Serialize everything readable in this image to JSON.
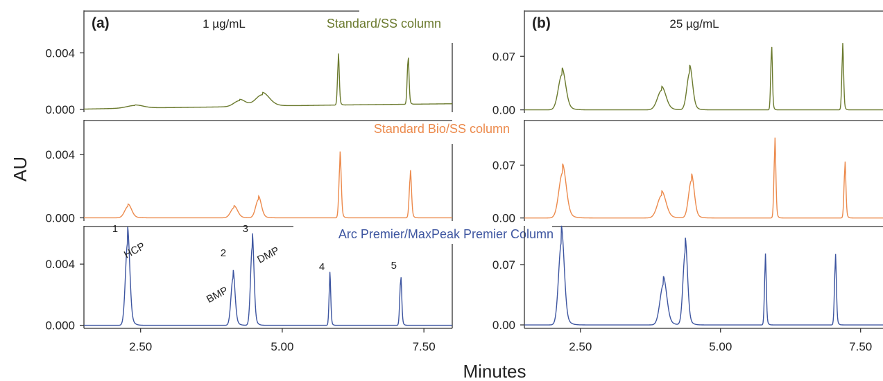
{
  "figure": {
    "ylabel": "AU",
    "xlabel": "Minutes",
    "colors": {
      "green": "#6b7a2e",
      "orange": "#ec8a4c",
      "blue": "#3d55a0",
      "axis": "#333333",
      "text": "#222222"
    }
  },
  "chart_data": [
    {
      "type": "line",
      "panel": "(a)",
      "concentration": "1 µg/mL",
      "x_ticks": [
        "2.50",
        "5.00",
        "7.50"
      ],
      "xlim": [
        1.5,
        8.0
      ],
      "rows": [
        {
          "name": "Standard/SS column",
          "color": "#6b7a2e",
          "ylim": [
            -0.0002,
            0.007
          ],
          "yticks": [
            0.0,
            0.004
          ],
          "ytick_labels": [
            "0.000",
            "0.004"
          ],
          "baseline": [
            [
              1.5,
              2e-05
            ],
            [
              2.2,
              8e-05
            ],
            [
              4.0,
              0.00018
            ],
            [
              5.8,
              0.0003
            ],
            [
              8.0,
              0.0004
            ]
          ],
          "peaks": [
            {
              "t": 2.4,
              "h": 0.00022,
              "w": 0.14
            },
            {
              "t": 4.25,
              "h": 0.0005,
              "w": 0.1
            },
            {
              "t": 4.65,
              "h": 0.00095,
              "w": 0.12
            },
            {
              "t": 5.99,
              "h": 0.0036,
              "w": 0.016
            },
            {
              "t": 7.22,
              "h": 0.0036,
              "w": 0.016
            }
          ]
        },
        {
          "name": "Standard Bio/SS column",
          "color": "#ec8a4c",
          "ylim": [
            -0.0002,
            0.0062
          ],
          "yticks": [
            0.0,
            0.004
          ],
          "ytick_labels": [
            "0.000",
            "0.004"
          ],
          "baseline": [
            [
              1.5,
              0.0
            ],
            [
              8.0,
              0.0
            ]
          ],
          "peaks": [
            {
              "t": 2.28,
              "h": 0.00085,
              "w": 0.06
            },
            {
              "t": 4.15,
              "h": 0.00075,
              "w": 0.06
            },
            {
              "t": 4.58,
              "h": 0.00135,
              "w": 0.05
            },
            {
              "t": 6.02,
              "h": 0.0041,
              "w": 0.02
            },
            {
              "t": 7.26,
              "h": 0.003,
              "w": 0.02
            }
          ]
        },
        {
          "name": "Arc Premier/MaxPeak Premier Column",
          "color": "#3d55a0",
          "ylim": [
            -0.0002,
            0.0065
          ],
          "yticks": [
            0.0,
            0.004
          ],
          "ytick_labels": [
            "0.000",
            "0.004"
          ],
          "baseline": [
            [
              1.5,
              0.0
            ],
            [
              8.0,
              0.0
            ]
          ],
          "peaks": [
            {
              "t": 2.27,
              "h": 0.0063,
              "w": 0.038
            },
            {
              "t": 4.13,
              "h": 0.0036,
              "w": 0.035
            },
            {
              "t": 4.47,
              "h": 0.006,
              "w": 0.03
            },
            {
              "t": 5.84,
              "h": 0.0034,
              "w": 0.015
            },
            {
              "t": 7.09,
              "h": 0.0034,
              "w": 0.017
            }
          ],
          "annotations": [
            {
              "text": "1",
              "t": 2.05,
              "v": 0.0061
            },
            {
              "text": "HCP",
              "t": 2.42,
              "v": 0.0047
            },
            {
              "text": "2",
              "t": 3.96,
              "v": 0.0045
            },
            {
              "text": "BMP",
              "t": 3.88,
              "v": 0.0018
            },
            {
              "text": "3",
              "t": 4.35,
              "v": 0.0061
            },
            {
              "text": "DMP",
              "t": 4.78,
              "v": 0.0044
            },
            {
              "text": "4",
              "t": 5.7,
              "v": 0.0036
            },
            {
              "text": "5",
              "t": 6.97,
              "v": 0.0037
            }
          ]
        }
      ]
    },
    {
      "type": "line",
      "panel": "(b)",
      "concentration": "25 µg/mL",
      "x_ticks": [
        "2.50",
        "5.00",
        "7.50"
      ],
      "xlim": [
        1.5,
        7.9
      ],
      "rows": [
        {
          "name": "Standard/SS column",
          "color": "#6b7a2e",
          "ylim": [
            -0.004,
            0.13
          ],
          "yticks": [
            0.0,
            0.07
          ],
          "ytick_labels": [
            "0.00",
            "0.07"
          ],
          "baseline": [
            [
              1.5,
              0.0
            ],
            [
              7.9,
              0.0
            ]
          ],
          "peaks": [
            {
              "t": 2.17,
              "h": 0.054,
              "w": 0.065
            },
            {
              "t": 3.95,
              "h": 0.03,
              "w": 0.075
            },
            {
              "t": 4.45,
              "h": 0.057,
              "w": 0.05
            },
            {
              "t": 5.91,
              "h": 0.088,
              "w": 0.015
            },
            {
              "t": 7.18,
              "h": 0.086,
              "w": 0.016
            }
          ]
        },
        {
          "name": "Standard Bio/SS column",
          "color": "#ec8a4c",
          "ylim": [
            -0.004,
            0.13
          ],
          "yticks": [
            0.0,
            0.07
          ],
          "ytick_labels": [
            "0.00",
            "0.07"
          ],
          "baseline": [
            [
              1.5,
              0.0
            ],
            [
              7.9,
              0.0
            ]
          ],
          "peaks": [
            {
              "t": 2.18,
              "h": 0.07,
              "w": 0.065
            },
            {
              "t": 3.95,
              "h": 0.035,
              "w": 0.075
            },
            {
              "t": 4.48,
              "h": 0.058,
              "w": 0.05
            },
            {
              "t": 5.97,
              "h": 0.106,
              "w": 0.017
            },
            {
              "t": 7.22,
              "h": 0.076,
              "w": 0.017
            }
          ]
        },
        {
          "name": "Arc Premier/MaxPeak Premier Column",
          "color": "#3d55a0",
          "ylim": [
            -0.004,
            0.115
          ],
          "yticks": [
            0.0,
            0.07
          ],
          "ytick_labels": [
            "0.00",
            "0.07"
          ],
          "baseline": [
            [
              1.5,
              0.0
            ],
            [
              7.9,
              0.0
            ]
          ],
          "peaks": [
            {
              "t": 2.16,
              "h": 0.112,
              "w": 0.05
            },
            {
              "t": 3.98,
              "h": 0.055,
              "w": 0.06
            },
            {
              "t": 4.37,
              "h": 0.099,
              "w": 0.04
            },
            {
              "t": 5.8,
              "h": 0.082,
              "w": 0.016
            },
            {
              "t": 7.05,
              "h": 0.083,
              "w": 0.017
            }
          ]
        }
      ]
    }
  ]
}
